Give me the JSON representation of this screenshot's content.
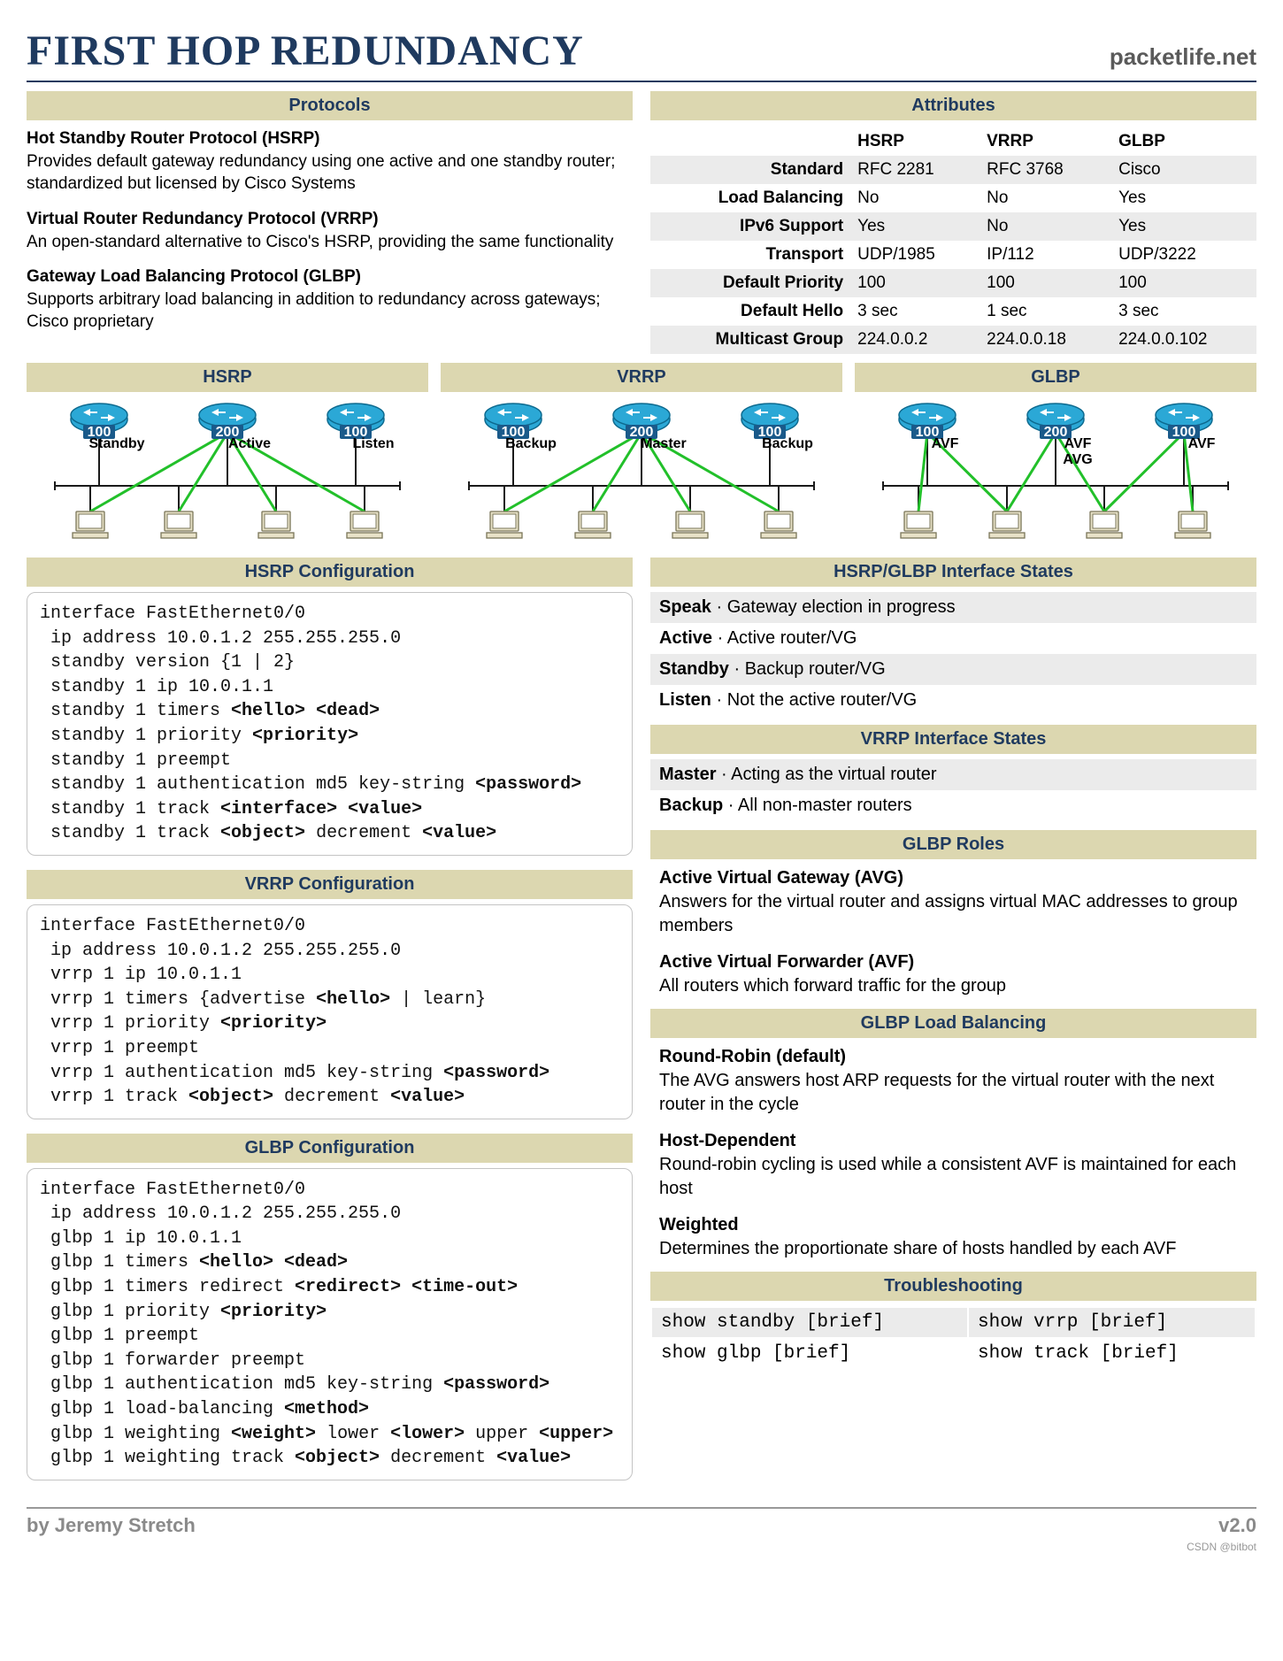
{
  "header": {
    "title": "FIRST HOP REDUNDANCY",
    "site": "packetlife.net"
  },
  "protocols": {
    "heading": "Protocols",
    "items": [
      {
        "title": "Hot Standby Router Protocol (HSRP)",
        "desc": "Provides default gateway redundancy using one active and one standby router; standardized but licensed by Cisco Systems"
      },
      {
        "title": "Virtual Router Redundancy Protocol (VRRP)",
        "desc": "An open-standard alternative to Cisco's HSRP, providing the same functionality"
      },
      {
        "title": "Gateway Load Balancing Protocol (GLBP)",
        "desc": "Supports arbitrary load balancing in addition to redundancy across gateways; Cisco proprietary"
      }
    ]
  },
  "attributes": {
    "heading": "Attributes",
    "cols": [
      "HSRP",
      "VRRP",
      "GLBP"
    ],
    "rows": [
      {
        "label": "Standard",
        "vals": [
          "RFC 2281",
          "RFC 3768",
          "Cisco"
        ],
        "odd": true
      },
      {
        "label": "Load Balancing",
        "vals": [
          "No",
          "No",
          "Yes"
        ],
        "odd": false
      },
      {
        "label": "IPv6 Support",
        "vals": [
          "Yes",
          "No",
          "Yes"
        ],
        "odd": true
      },
      {
        "label": "Transport",
        "vals": [
          "UDP/1985",
          "IP/112",
          "UDP/3222"
        ],
        "odd": false
      },
      {
        "label": "Default Priority",
        "vals": [
          "100",
          "100",
          "100"
        ],
        "odd": true
      },
      {
        "label": "Default Hello",
        "vals": [
          "3 sec",
          "1 sec",
          "3 sec"
        ],
        "odd": false
      },
      {
        "label": "Multicast Group",
        "vals": [
          "224.0.0.2",
          "224.0.0.18",
          "224.0.0.102"
        ],
        "odd": true
      }
    ]
  },
  "diagrams": {
    "colors": {
      "router_fill": "#2ba8d6",
      "router_stroke": "#0d6a8f",
      "pc_fill": "#e8e2c8",
      "pc_stroke": "#7a7558",
      "bus": "#1a1a1a",
      "link": "#22c02a",
      "bg": "#ffffff"
    },
    "items": [
      {
        "title": "HSRP",
        "routers": [
          {
            "p": 100,
            "l": "Standby"
          },
          {
            "p": 200,
            "l": "Active"
          },
          {
            "p": 100,
            "l": "Listen"
          }
        ],
        "active": 1,
        "avf": false
      },
      {
        "title": "VRRP",
        "routers": [
          {
            "p": 100,
            "l": "Backup"
          },
          {
            "p": 200,
            "l": "Master"
          },
          {
            "p": 100,
            "l": "Backup"
          }
        ],
        "active": 1,
        "avf": false
      },
      {
        "title": "GLBP",
        "routers": [
          {
            "p": 100,
            "l": "AVF"
          },
          {
            "p": 200,
            "l": "AVF",
            "l2": "AVG"
          },
          {
            "p": 100,
            "l": "AVF"
          }
        ],
        "active": 1,
        "avf": true
      }
    ]
  },
  "hsrp_cfg": {
    "heading": "HSRP Configuration"
  },
  "vrrp_cfg": {
    "heading": "VRRP Configuration"
  },
  "glbp_cfg": {
    "heading": "GLBP Configuration"
  },
  "hsrp_states": {
    "heading": "HSRP/GLBP Interface States",
    "items": [
      {
        "k": "Speak",
        "v": "Gateway election in progress"
      },
      {
        "k": "Active",
        "v": "Active router/VG"
      },
      {
        "k": "Standby",
        "v": "Backup router/VG"
      },
      {
        "k": "Listen",
        "v": "Not the active router/VG"
      }
    ]
  },
  "vrrp_states": {
    "heading": "VRRP Interface States",
    "items": [
      {
        "k": "Master",
        "v": "Acting as the virtual router"
      },
      {
        "k": "Backup",
        "v": "All non-master routers"
      }
    ]
  },
  "glbp_roles": {
    "heading": "GLBP Roles",
    "items": [
      {
        "t": "Active Virtual Gateway (AVG)",
        "d": "Answers for the virtual router and assigns virtual MAC addresses to group members"
      },
      {
        "t": "Active Virtual Forwarder (AVF)",
        "d": "All routers which forward traffic for the group"
      }
    ]
  },
  "glbp_lb": {
    "heading": "GLBP Load Balancing",
    "items": [
      {
        "t": "Round-Robin (default)",
        "d": "The AVG answers host ARP requests for the virtual router with the next router in the cycle"
      },
      {
        "t": "Host-Dependent",
        "d": "Round-robin cycling is used while a consistent AVF is maintained for each host"
      },
      {
        "t": "Weighted",
        "d": "Determines the proportionate share of hosts handled by each AVF"
      }
    ]
  },
  "troubleshoot": {
    "heading": "Troubleshooting",
    "cmds": [
      [
        "show standby [brief]",
        "show vrrp [brief]"
      ],
      [
        "show glbp [brief]",
        "show track [brief]"
      ]
    ]
  },
  "footer": {
    "author": "by Jeremy Stretch",
    "version": "v2.0"
  },
  "csdn": "CSDN @bitbot"
}
